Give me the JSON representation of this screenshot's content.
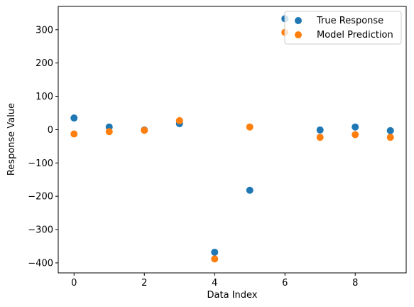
{
  "chart_data": {
    "type": "scatter",
    "title": "",
    "xlabel": "Data Index",
    "ylabel": "Response Value",
    "xlim": [
      -0.45,
      9.45
    ],
    "ylim": [
      -430,
      370
    ],
    "xticks": [
      0,
      2,
      4,
      6,
      8
    ],
    "yticks": [
      -400,
      -300,
      -200,
      -100,
      0,
      100,
      200,
      300
    ],
    "grid": false,
    "legend_position": "top-right",
    "series": [
      {
        "name": "True Response",
        "color": "#1f77b4",
        "x": [
          0,
          1,
          2,
          3,
          4,
          5,
          6,
          7,
          8,
          9
        ],
        "y": [
          35,
          8,
          -1,
          18,
          -368,
          -182,
          333,
          -1,
          8,
          -3
        ]
      },
      {
        "name": "Model Prediction",
        "color": "#ff7f0e",
        "x": [
          0,
          1,
          2,
          3,
          4,
          5,
          6,
          7,
          8,
          9
        ],
        "y": [
          -13,
          -6,
          -2,
          27,
          -388,
          8,
          292,
          -23,
          -15,
          -23
        ]
      }
    ]
  }
}
